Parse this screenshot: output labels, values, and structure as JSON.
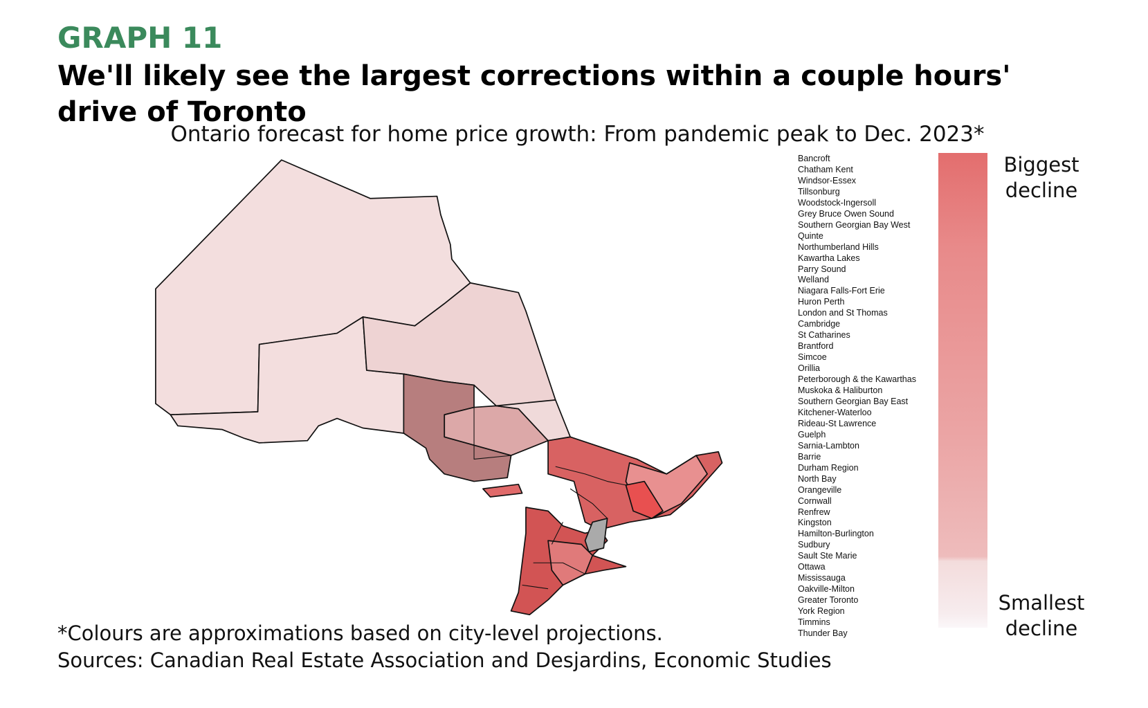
{
  "header": {
    "label": "GRAPH 11",
    "title": "We'll likely see the largest corrections within a couple hours' drive of Toronto",
    "subtitle": "Ontario forecast for home price growth: From pandemic peak to Dec. 2023*"
  },
  "legend": {
    "regions": [
      "Bancroft",
      "Chatham Kent",
      "Windsor-Essex",
      "Tillsonburg",
      "Woodstock-Ingersoll",
      "Grey Bruce Owen Sound",
      "Southern Georgian Bay West",
      "Quinte",
      "Northumberland Hills",
      "Kawartha Lakes",
      "Parry Sound",
      "Welland",
      "Niagara Falls-Fort Erie",
      "Huron Perth",
      "London and St Thomas",
      "Cambridge",
      "St Catharines",
      "Brantford",
      "Simcoe",
      "Orillia",
      "Peterborough & the Kawarthas",
      "Muskoka & Haliburton",
      "Southern Georgian Bay East",
      "Kitchener-Waterloo",
      "Rideau-St Lawrence",
      "Guelph",
      "Sarnia-Lambton",
      "Barrie",
      "Durham Region",
      "North Bay",
      "Orangeville",
      "Cornwall",
      "Renfrew",
      "Kingston",
      "Hamilton-Burlington",
      "Sudbury",
      "Sault Ste Marie",
      "Ottawa",
      "Mississauga",
      "Oakville-Milton",
      "Greater Toronto",
      "York Region",
      "Timmins",
      "Thunder Bay"
    ],
    "top_label": "Biggest decline",
    "bottom_label": "Smallest decline"
  },
  "footer": {
    "note": "*Colours are approximations based on city-level projections.",
    "sources": "Sources: Canadian Real Estate Association and Desjardins, Economic Studies"
  }
}
